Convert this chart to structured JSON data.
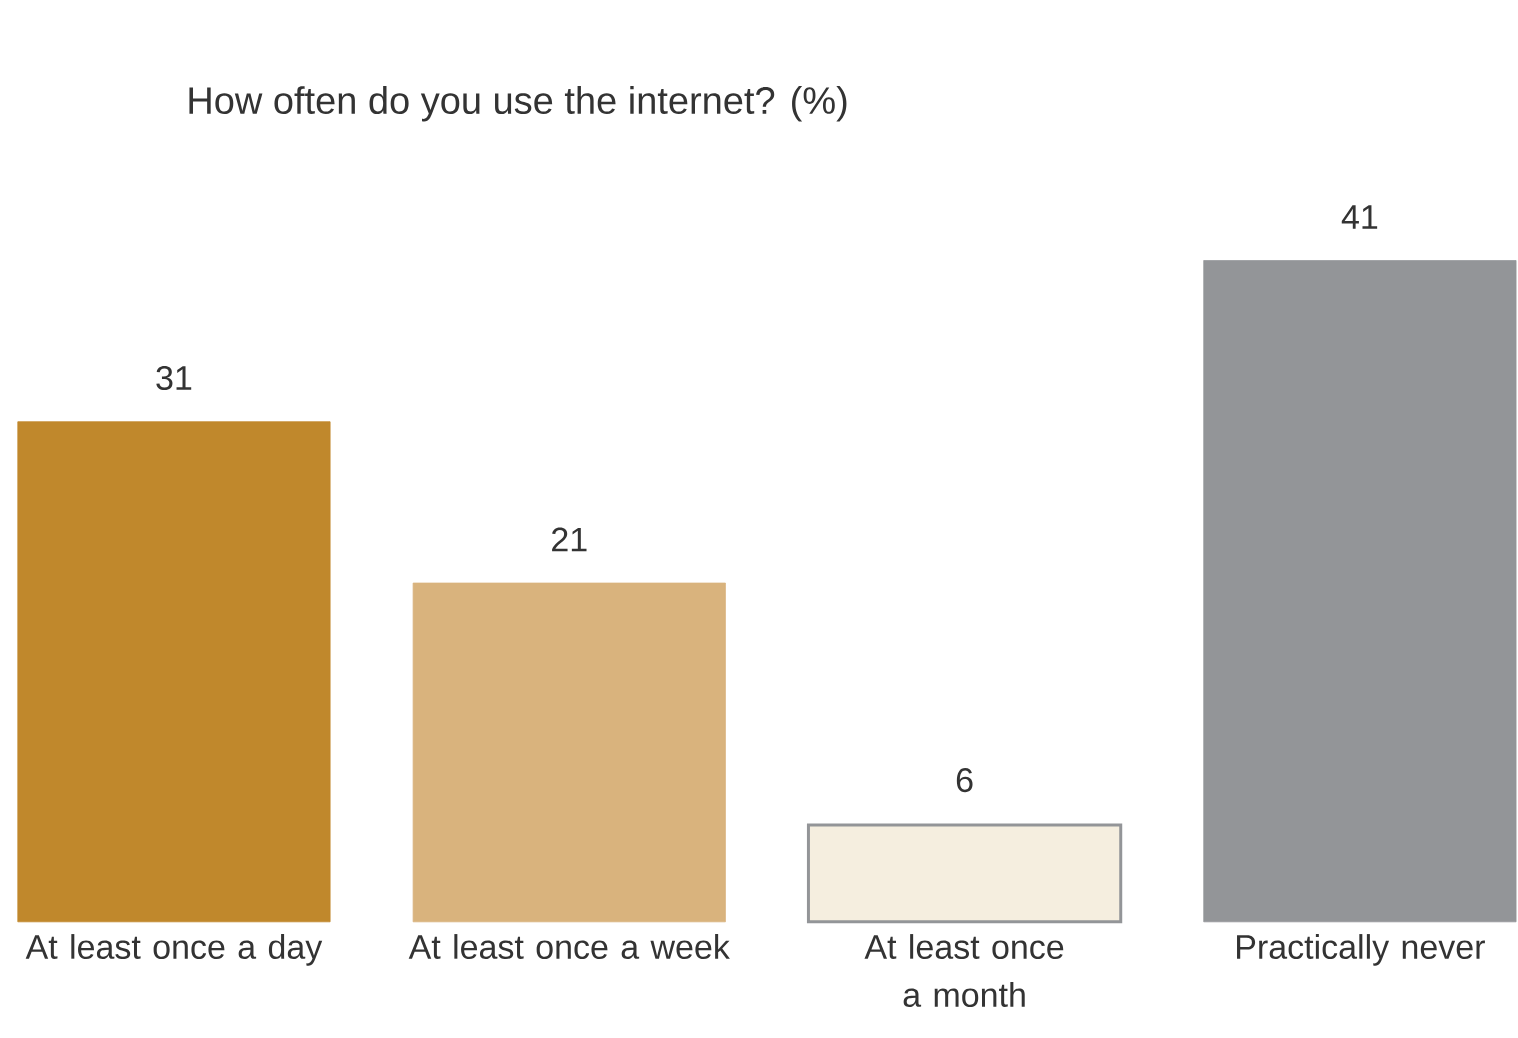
{
  "chart_data": {
    "type": "bar",
    "title": "How often do you use the internet? (%)",
    "categories": [
      "At least once a day",
      "At least once a week",
      "At least once a month",
      "Practically never"
    ],
    "values": [
      31,
      21,
      6,
      41
    ],
    "colors": [
      "#c0882c",
      "#d9b37d",
      "#f5eedf",
      "#939598"
    ],
    "data_labels": true
  }
}
